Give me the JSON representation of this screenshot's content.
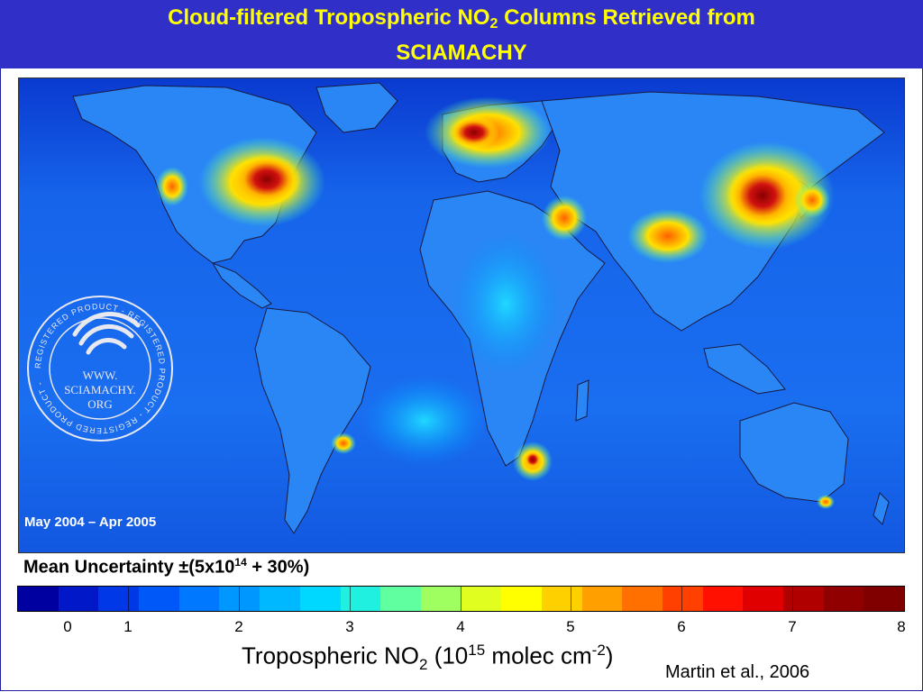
{
  "header": {
    "title_pre": "Cloud-filtered Tropospheric NO",
    "title_sub": "2",
    "title_post": " Columns Retrieved from",
    "title_line2": "SCIAMACHY"
  },
  "map": {
    "period": "May 2004 – Apr 2005",
    "stamp_ring_text": "REGISTERED PRODUCT - REGISTERED PRODUCT - REGISTERED PRODUCT -",
    "stamp_center": [
      "WWW.",
      "SCIAMACHY.",
      "ORG"
    ],
    "ocean_color": "#1a66e6",
    "hotspot_color": "#8b0000"
  },
  "uncertainty": {
    "pre": "Mean Uncertainty ±(5x10",
    "exp": "14",
    "post": " + 30%)"
  },
  "colorbar": {
    "ticks": [
      "0",
      "1",
      "2",
      "3",
      "4",
      "5",
      "6",
      "7",
      "8"
    ],
    "colors": [
      "#0000a0",
      "#0018c8",
      "#0038e8",
      "#0058f8",
      "#0078ff",
      "#0098ff",
      "#00b8ff",
      "#00d8ff",
      "#20f0e0",
      "#60ffa0",
      "#a0ff60",
      "#e0ff20",
      "#ffff00",
      "#ffd000",
      "#ffa000",
      "#ff7000",
      "#ff4000",
      "#ff1000",
      "#e00000",
      "#b00000",
      "#900000",
      "#800000"
    ]
  },
  "axis": {
    "label_pre": "Tropospheric NO",
    "label_sub": "2",
    "label_mid": " (10",
    "label_exp1": "15",
    "label_unit": " molec cm",
    "label_exp2": "-2",
    "label_post": ")"
  },
  "credit": "Martin et al., 2006"
}
